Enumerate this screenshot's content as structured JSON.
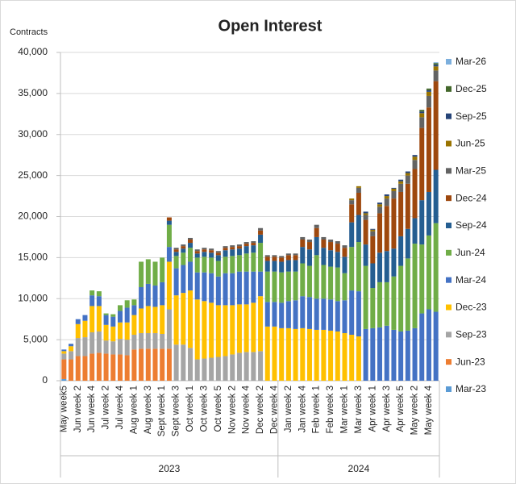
{
  "chart_data": {
    "type": "stacked_bar",
    "title": "Open Interest",
    "y_axis_label": "Contracts",
    "categories": [
      "May week5",
      null,
      "Jun week 2",
      null,
      "Jun week 4",
      null,
      "Jul week 2",
      null,
      "Jul week 4",
      null,
      "Aug week 1",
      null,
      "Aug week 3",
      null,
      "Sept week 1",
      null,
      "Sept week 3",
      null,
      "Oct week 1",
      null,
      "Oct week 3",
      null,
      "Oct week 5",
      null,
      "Nov week 2",
      null,
      "Nov week 4",
      null,
      "Dec week 2",
      null,
      "Dec week 4",
      null,
      "Jan week 2",
      null,
      "Jan week 4",
      null,
      "Feb week 1",
      null,
      "Feb week 3",
      null,
      "Mar week 1",
      null,
      "Mar week 3",
      null,
      "Apr week 1",
      null,
      "Apr week 3",
      null,
      "Apr week 5",
      null,
      "May week 2",
      null,
      "May week 4",
      null
    ],
    "groups": [
      {
        "label": "2023",
        "count": 31
      },
      {
        "label": "2024",
        "count": 23
      }
    ],
    "ylim": [
      0,
      40000
    ],
    "yticks": [
      0,
      {
        "value": 5000,
        "label": "5,000"
      },
      {
        "value": 10000,
        "label": "10,000"
      },
      {
        "value": 15000,
        "label": "15,000"
      },
      {
        "value": 20000,
        "label": "20,000"
      },
      {
        "value": 25000,
        "label": "25,000"
      },
      {
        "value": 30000,
        "label": "30,000"
      },
      {
        "value": 35000,
        "label": "35,000"
      },
      {
        "value": 40000,
        "label": "40,000"
      }
    ],
    "grid": true,
    "legend": "right",
    "series": [
      {
        "name": "Mar-23",
        "color": "#5b9bd5",
        "values": [
          200,
          0,
          0,
          0,
          0,
          0,
          0,
          0,
          0,
          0,
          0,
          0,
          0,
          0,
          0,
          0,
          0,
          0,
          0,
          0,
          0,
          0,
          0,
          0,
          0,
          0,
          0,
          0,
          0,
          0,
          0,
          0,
          0,
          0,
          0,
          0,
          0,
          0,
          0,
          0,
          0,
          0,
          0,
          0,
          0,
          0,
          0,
          0,
          0,
          0,
          0,
          0,
          0,
          0
        ]
      },
      {
        "name": "Jun-23",
        "color": "#ed7d31",
        "values": [
          2400,
          2600,
          3000,
          3000,
          3300,
          3400,
          3300,
          3200,
          3200,
          3100,
          3800,
          3900,
          3900,
          3900,
          3900,
          3900,
          0,
          0,
          0,
          0,
          0,
          0,
          0,
          0,
          0,
          0,
          0,
          0,
          0,
          0,
          0,
          0,
          0,
          0,
          0,
          0,
          0,
          0,
          0,
          0,
          0,
          0,
          0,
          0,
          0,
          0,
          0,
          0,
          0,
          0,
          0,
          0,
          0,
          0
        ]
      },
      {
        "name": "Sep-23",
        "color": "#a5a5a5",
        "values": [
          700,
          1000,
          2200,
          2300,
          2600,
          2600,
          1600,
          1600,
          1900,
          1900,
          1800,
          1900,
          1900,
          1900,
          1800,
          4800,
          4400,
          4400,
          4000,
          2600,
          2700,
          2800,
          2900,
          3000,
          3200,
          3400,
          3500,
          3500,
          3600,
          0,
          0,
          0,
          0,
          0,
          0,
          0,
          0,
          0,
          0,
          0,
          0,
          0,
          0,
          0,
          0,
          0,
          0,
          0,
          0,
          0,
          0,
          0,
          0,
          0
        ]
      },
      {
        "name": "Dec-23",
        "color": "#ffc000",
        "values": [
          300,
          600,
          1700,
          2000,
          3200,
          3100,
          1900,
          1800,
          2000,
          2100,
          2400,
          3000,
          3300,
          3200,
          3500,
          5800,
          6000,
          6300,
          7000,
          7300,
          7000,
          6700,
          6300,
          6200,
          6000,
          5900,
          5800,
          6000,
          6700,
          6600,
          6600,
          6400,
          6400,
          6300,
          6400,
          6300,
          6200,
          6200,
          6100,
          6000,
          5800,
          5600,
          5400,
          0,
          0,
          0,
          0,
          0,
          0,
          0,
          0,
          0,
          0,
          0
        ]
      },
      {
        "name": "Mar-24",
        "color": "#4472c4",
        "values": [
          200,
          300,
          600,
          700,
          1300,
          1200,
          1200,
          1200,
          1400,
          1800,
          1200,
          2600,
          2700,
          2600,
          2800,
          1800,
          3300,
          3400,
          3500,
          3300,
          3500,
          3600,
          3500,
          3900,
          3900,
          4000,
          4000,
          3800,
          3000,
          3000,
          3000,
          3100,
          3300,
          3500,
          3900,
          3900,
          3800,
          3800,
          3800,
          3700,
          4000,
          5400,
          5500,
          6300,
          6400,
          6500,
          6700,
          6200,
          6000,
          6100,
          6400,
          8200,
          8700,
          8400
        ]
      },
      {
        "name": "Jun-24",
        "color": "#70ad47",
        "values": [
          0,
          0,
          0,
          0,
          600,
          600,
          200,
          300,
          700,
          900,
          700,
          3100,
          3000,
          2900,
          3000,
          2700,
          1500,
          1500,
          1700,
          1800,
          1900,
          1900,
          1900,
          2000,
          2100,
          2000,
          2200,
          2300,
          3500,
          3700,
          3700,
          3700,
          3600,
          3500,
          4000,
          3800,
          5300,
          4100,
          4000,
          4100,
          3300,
          5300,
          6000,
          7700,
          4900,
          5500,
          5300,
          6500,
          8000,
          8800,
          10300,
          8400,
          9000,
          10800
        ]
      },
      {
        "name": "Sep-24",
        "color": "#255e91",
        "values": [
          0,
          0,
          0,
          0,
          0,
          0,
          0,
          0,
          0,
          0,
          0,
          0,
          0,
          0,
          0,
          500,
          500,
          500,
          600,
          500,
          600,
          600,
          700,
          800,
          800,
          800,
          900,
          900,
          1000,
          1300,
          1300,
          1300,
          1400,
          1400,
          2000,
          2000,
          2200,
          2100,
          2000,
          1900,
          2000,
          3000,
          3300,
          2600,
          3000,
          3600,
          3800,
          3400,
          3600,
          3600,
          3100,
          5400,
          5300,
          6500
        ]
      },
      {
        "name": "Dec-24",
        "color": "#9e480e",
        "values": [
          0,
          0,
          0,
          0,
          0,
          0,
          0,
          0,
          0,
          0,
          0,
          0,
          0,
          0,
          0,
          400,
          300,
          300,
          400,
          300,
          300,
          300,
          300,
          300,
          300,
          300,
          300,
          300,
          500,
          500,
          500,
          500,
          600,
          600,
          900,
          900,
          1100,
          1000,
          1000,
          1000,
          1100,
          2200,
          2700,
          3000,
          3300,
          4800,
          5500,
          6100,
          5400,
          5500,
          6000,
          8800,
          10300,
          10800
        ]
      },
      {
        "name": "Mar-25",
        "color": "#636363",
        "values": [
          0,
          0,
          0,
          0,
          0,
          0,
          0,
          0,
          0,
          0,
          0,
          0,
          0,
          0,
          0,
          0,
          200,
          200,
          200,
          200,
          200,
          200,
          200,
          200,
          200,
          200,
          200,
          200,
          300,
          200,
          200,
          200,
          200,
          200,
          300,
          300,
          400,
          300,
          300,
          300,
          300,
          500,
          600,
          600,
          600,
          800,
          900,
          900,
          1000,
          1000,
          1100,
          1300,
          1400,
          1300
        ]
      },
      {
        "name": "Jun-25",
        "color": "#997300",
        "values": [
          0,
          0,
          0,
          0,
          0,
          0,
          0,
          0,
          0,
          0,
          0,
          0,
          0,
          0,
          0,
          0,
          0,
          0,
          0,
          0,
          0,
          0,
          0,
          0,
          0,
          0,
          0,
          0,
          0,
          0,
          0,
          0,
          0,
          0,
          0,
          0,
          0,
          0,
          0,
          0,
          0,
          200,
          200,
          200,
          200,
          300,
          300,
          300,
          300,
          300,
          400,
          500,
          500,
          500
        ]
      },
      {
        "name": "Sep-25",
        "color": "#264478",
        "values": [
          0,
          0,
          0,
          0,
          0,
          0,
          0,
          0,
          0,
          0,
          0,
          0,
          0,
          0,
          0,
          0,
          0,
          0,
          0,
          0,
          0,
          0,
          0,
          0,
          0,
          0,
          0,
          0,
          0,
          0,
          0,
          0,
          0,
          0,
          0,
          0,
          0,
          0,
          0,
          0,
          0,
          0,
          0,
          200,
          100,
          200,
          200,
          100,
          200,
          200,
          200,
          200,
          200,
          200
        ]
      },
      {
        "name": "Dec-25",
        "color": "#43682b",
        "values": [
          0,
          0,
          0,
          0,
          0,
          0,
          0,
          0,
          0,
          0,
          0,
          0,
          0,
          0,
          0,
          0,
          0,
          0,
          0,
          0,
          0,
          0,
          0,
          0,
          0,
          0,
          0,
          0,
          0,
          0,
          0,
          0,
          0,
          0,
          0,
          0,
          0,
          0,
          0,
          0,
          0,
          0,
          0,
          0,
          0,
          0,
          0,
          0,
          0,
          0,
          0,
          200,
          200,
          200
        ]
      },
      {
        "name": "Mar-26",
        "color": "#7cafdd",
        "values": [
          0,
          0,
          0,
          0,
          0,
          0,
          0,
          0,
          0,
          0,
          0,
          0,
          0,
          0,
          0,
          0,
          0,
          0,
          0,
          0,
          0,
          0,
          0,
          0,
          0,
          0,
          0,
          0,
          0,
          0,
          0,
          0,
          0,
          0,
          0,
          0,
          0,
          0,
          0,
          0,
          0,
          0,
          0,
          0,
          0,
          0,
          0,
          0,
          0,
          0,
          0,
          0,
          0,
          100
        ]
      }
    ]
  }
}
